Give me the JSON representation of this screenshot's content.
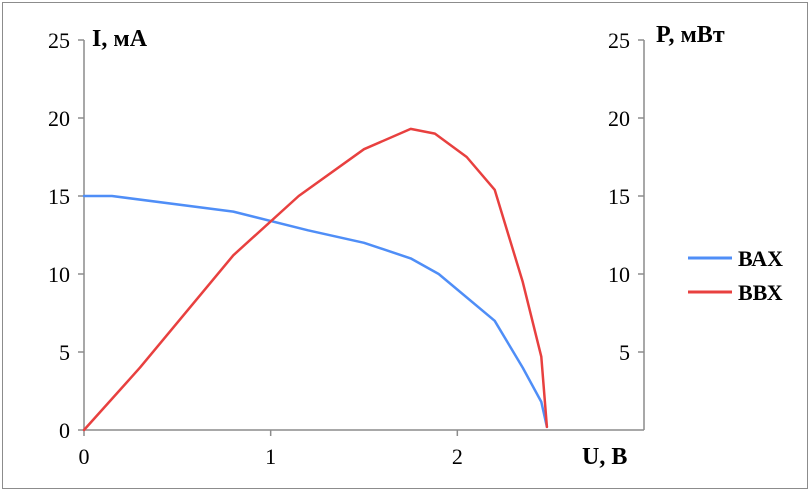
{
  "chart_data": {
    "type": "line",
    "x_label": "U, В",
    "y_left_label": "I, мА",
    "y_right_label": "P, мВт",
    "x_ticks": [
      0,
      1,
      2
    ],
    "y_left_ticks": [
      0,
      5,
      10,
      15,
      20,
      25
    ],
    "y_right_ticks": [
      5,
      10,
      15,
      20,
      25
    ],
    "xlim": [
      0,
      3
    ],
    "ylim_left": [
      0,
      25
    ],
    "ylim_right": [
      0,
      25
    ],
    "grid": false,
    "legend_position": "right",
    "series": [
      {
        "name": "ВАХ",
        "color": "#4f8ef7",
        "axis": "left",
        "x": [
          0,
          0.15,
          0.8,
          1.2,
          1.5,
          1.75,
          1.9,
          2.2,
          2.35,
          2.45,
          2.48
        ],
        "y": [
          15,
          15,
          14,
          12.8,
          12,
          11,
          10,
          7,
          4,
          1.8,
          0.2
        ]
      },
      {
        "name": "ВВХ",
        "color": "#e8403f",
        "axis": "right",
        "x": [
          0,
          0.3,
          0.8,
          1.15,
          1.5,
          1.75,
          1.88,
          2.05,
          2.2,
          2.35,
          2.45,
          2.48
        ],
        "y": [
          0,
          4,
          11.2,
          15,
          18,
          19.3,
          19,
          17.5,
          15.4,
          9.5,
          4.7,
          0.2
        ]
      }
    ]
  }
}
